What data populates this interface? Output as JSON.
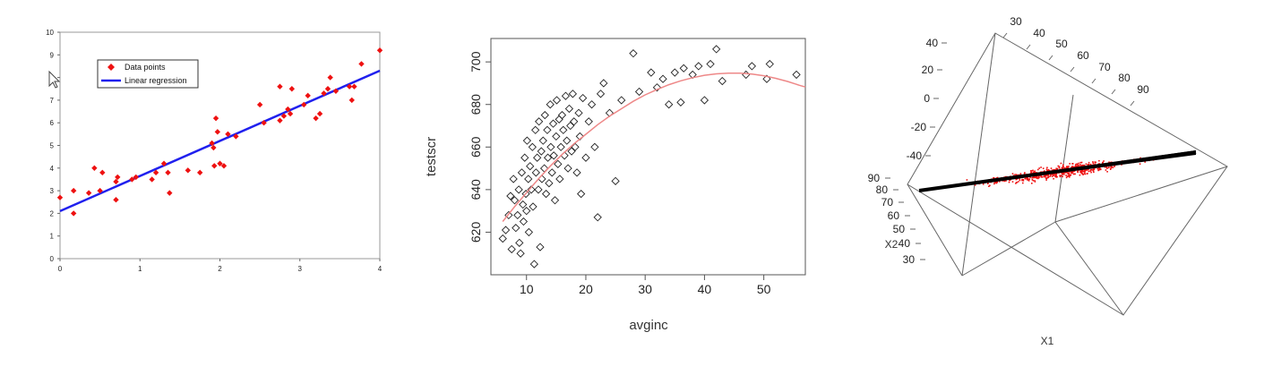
{
  "chart_data": [
    {
      "type": "scatter",
      "xlim": [
        0,
        4
      ],
      "ylim": [
        0,
        10
      ],
      "xticks": [
        0,
        1,
        2,
        3,
        4
      ],
      "yticks": [
        0,
        1,
        2,
        3,
        4,
        5,
        6,
        7,
        8,
        9,
        10
      ],
      "grid": false,
      "legend": {
        "placement": "top-left",
        "entries": [
          {
            "label": "Data points",
            "color": "#ee1111",
            "marker": "diamond"
          },
          {
            "label": "Linear regression",
            "color": "#2020ee",
            "marker": "line"
          }
        ]
      },
      "series": [
        {
          "name": "Data points",
          "color": "#ee1111",
          "points": [
            [
              0.0,
              2.7
            ],
            [
              0.17,
              2.0
            ],
            [
              0.17,
              3.0
            ],
            [
              0.36,
              2.9
            ],
            [
              0.43,
              4.0
            ],
            [
              0.5,
              3.0
            ],
            [
              0.53,
              3.8
            ],
            [
              0.7,
              3.4
            ],
            [
              0.7,
              2.6
            ],
            [
              0.72,
              3.6
            ],
            [
              0.9,
              3.5
            ],
            [
              0.95,
              3.6
            ],
            [
              1.15,
              3.5
            ],
            [
              1.2,
              3.8
            ],
            [
              1.3,
              4.2
            ],
            [
              1.35,
              3.8
            ],
            [
              1.37,
              2.9
            ],
            [
              1.6,
              3.9
            ],
            [
              1.75,
              3.8
            ],
            [
              1.9,
              5.1
            ],
            [
              1.92,
              4.9
            ],
            [
              1.93,
              4.1
            ],
            [
              1.95,
              6.2
            ],
            [
              1.97,
              5.6
            ],
            [
              2.0,
              4.2
            ],
            [
              2.05,
              4.1
            ],
            [
              2.1,
              5.5
            ],
            [
              2.2,
              5.4
            ],
            [
              2.5,
              6.8
            ],
            [
              2.55,
              6.0
            ],
            [
              2.75,
              7.6
            ],
            [
              2.75,
              6.1
            ],
            [
              2.8,
              6.3
            ],
            [
              2.85,
              6.6
            ],
            [
              2.88,
              6.4
            ],
            [
              2.9,
              7.5
            ],
            [
              3.05,
              6.8
            ],
            [
              3.1,
              7.2
            ],
            [
              3.2,
              6.2
            ],
            [
              3.25,
              6.4
            ],
            [
              3.3,
              7.3
            ],
            [
              3.35,
              7.5
            ],
            [
              3.38,
              8.0
            ],
            [
              3.45,
              7.4
            ],
            [
              3.62,
              7.6
            ],
            [
              3.65,
              7.0
            ],
            [
              3.68,
              7.6
            ],
            [
              3.77,
              8.6
            ],
            [
              4.0,
              9.2
            ]
          ]
        },
        {
          "name": "Linear regression",
          "color": "#2020ee",
          "line": [
            [
              0,
              2.1
            ],
            [
              4,
              8.3
            ]
          ]
        }
      ]
    },
    {
      "type": "scatter",
      "xlabel": "avginc",
      "ylabel": "testscr",
      "xlim": [
        4,
        57
      ],
      "ylim": [
        600,
        711
      ],
      "xticks": [
        10,
        20,
        30,
        40,
        50
      ],
      "yticks": [
        620,
        640,
        660,
        680,
        700
      ],
      "grid": false,
      "marker_color": "#222222",
      "fit_color": "#ee8888",
      "fit_curve": [
        [
          6,
          625
        ],
        [
          8,
          632
        ],
        [
          10,
          638.5
        ],
        [
          12,
          645
        ],
        [
          14,
          651
        ],
        [
          16,
          656.5
        ],
        [
          18,
          661.5
        ],
        [
          20,
          666
        ],
        [
          22,
          670.5
        ],
        [
          24,
          674.5
        ],
        [
          26,
          678
        ],
        [
          28,
          681.5
        ],
        [
          30,
          684.5
        ],
        [
          32,
          687
        ],
        [
          34,
          689.3
        ],
        [
          36,
          691.1
        ],
        [
          38,
          692.6
        ],
        [
          40,
          693.7
        ],
        [
          42,
          694.4
        ],
        [
          44,
          694.7
        ],
        [
          46,
          694.7
        ],
        [
          48,
          694.3
        ],
        [
          50,
          693.5
        ],
        [
          52,
          692.3
        ],
        [
          54,
          690.8
        ],
        [
          56,
          689.0
        ],
        [
          57,
          688.2
        ]
      ],
      "points": [
        [
          6,
          617
        ],
        [
          6.5,
          621
        ],
        [
          7,
          628
        ],
        [
          7.3,
          637
        ],
        [
          7.5,
          612
        ],
        [
          7.8,
          645
        ],
        [
          8,
          635
        ],
        [
          8.2,
          622
        ],
        [
          8.5,
          628
        ],
        [
          8.7,
          640
        ],
        [
          8.8,
          615
        ],
        [
          9,
          610
        ],
        [
          9.2,
          648
        ],
        [
          9.4,
          633
        ],
        [
          9.5,
          625
        ],
        [
          9.7,
          655
        ],
        [
          9.9,
          638
        ],
        [
          10,
          630
        ],
        [
          10.1,
          663
        ],
        [
          10.3,
          645
        ],
        [
          10.4,
          620
        ],
        [
          10.6,
          651
        ],
        [
          10.8,
          640
        ],
        [
          11,
          660
        ],
        [
          11.1,
          632
        ],
        [
          11.3,
          605
        ],
        [
          11.5,
          668
        ],
        [
          11.6,
          648
        ],
        [
          11.8,
          655
        ],
        [
          12,
          640
        ],
        [
          12.1,
          672
        ],
        [
          12.3,
          613
        ],
        [
          12.5,
          658
        ],
        [
          12.6,
          645
        ],
        [
          12.8,
          663
        ],
        [
          13,
          650
        ],
        [
          13.1,
          675
        ],
        [
          13.3,
          638
        ],
        [
          13.5,
          668
        ],
        [
          13.6,
          655
        ],
        [
          13.8,
          643
        ],
        [
          14,
          680
        ],
        [
          14.1,
          660
        ],
        [
          14.3,
          648
        ],
        [
          14.5,
          671
        ],
        [
          14.6,
          656
        ],
        [
          14.8,
          635
        ],
        [
          15,
          665
        ],
        [
          15.1,
          682
        ],
        [
          15.3,
          652
        ],
        [
          15.5,
          673
        ],
        [
          15.6,
          645
        ],
        [
          15.8,
          660
        ],
        [
          16,
          675
        ],
        [
          16.2,
          668
        ],
        [
          16.4,
          656
        ],
        [
          16.6,
          684
        ],
        [
          16.8,
          663
        ],
        [
          17,
          650
        ],
        [
          17.2,
          678
        ],
        [
          17.4,
          670
        ],
        [
          17.6,
          658
        ],
        [
          17.8,
          685
        ],
        [
          18,
          672
        ],
        [
          18.2,
          660
        ],
        [
          18.5,
          648
        ],
        [
          18.8,
          676
        ],
        [
          19,
          665
        ],
        [
          19.2,
          638
        ],
        [
          19.5,
          683
        ],
        [
          20,
          655
        ],
        [
          20.5,
          672
        ],
        [
          21,
          680
        ],
        [
          21.5,
          660
        ],
        [
          22,
          627
        ],
        [
          22.5,
          685
        ],
        [
          23,
          690
        ],
        [
          24,
          676
        ],
        [
          25,
          644
        ],
        [
          26,
          682
        ],
        [
          28,
          704
        ],
        [
          29,
          686
        ],
        [
          31,
          695
        ],
        [
          32,
          688
        ],
        [
          33,
          692
        ],
        [
          34,
          680
        ],
        [
          35,
          695
        ],
        [
          36,
          681
        ],
        [
          36.5,
          697
        ],
        [
          38,
          694
        ],
        [
          39,
          698
        ],
        [
          40,
          682
        ],
        [
          41,
          699
        ],
        [
          42,
          706
        ],
        [
          43,
          691
        ],
        [
          47,
          694
        ],
        [
          48,
          698
        ],
        [
          50.5,
          692
        ],
        [
          51,
          699
        ],
        [
          55.5,
          694
        ]
      ]
    },
    {
      "type": "scatter",
      "xlabel": "X1",
      "ylabel": "X2",
      "x_tick_labels": [
        "30",
        "40",
        "50",
        "60",
        "70",
        "80",
        "90"
      ],
      "y_tick_labels": [
        "90",
        "80",
        "70",
        "60",
        "50",
        "40",
        "30"
      ],
      "z_tick_labels": [
        "40",
        "20",
        "0",
        "-20",
        "-40"
      ],
      "point_color": "#ee1111",
      "plane_color": "#000000"
    }
  ]
}
